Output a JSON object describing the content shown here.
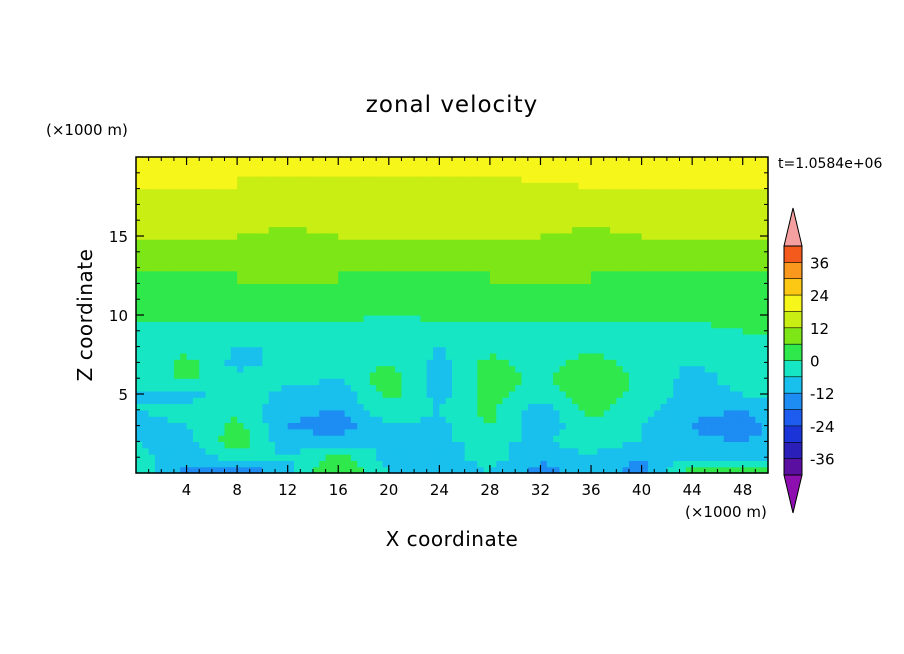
{
  "chart_data": {
    "type": "heatmap",
    "title": "zonal velocity",
    "xlabel": "X coordinate",
    "ylabel": "Z coordinate",
    "x_unit": "(×1000 m)",
    "y_unit": "(×1000 m)",
    "time_label": "t=1.0584e+06",
    "xlim": [
      0,
      50
    ],
    "ylim": [
      0,
      20
    ],
    "x_ticks": [
      4,
      8,
      12,
      16,
      20,
      24,
      28,
      32,
      36,
      40,
      44,
      48
    ],
    "y_ticks": [
      5,
      10,
      15
    ],
    "colorbar": {
      "levels": [
        -42,
        -36,
        -30,
        -24,
        -18,
        -12,
        -6,
        0,
        6,
        12,
        18,
        24,
        30,
        36,
        42
      ],
      "labels": [
        36,
        24,
        12,
        0,
        -12,
        -24,
        -36
      ],
      "colors": [
        "#5a0fa0",
        "#2a1fb8",
        "#1a34d8",
        "#1e5cf0",
        "#1d8cf3",
        "#19c0ee",
        "#17e6c4",
        "#2ee84c",
        "#7de617",
        "#c8ee14",
        "#f6f61a",
        "#fcc814",
        "#f9981c",
        "#f45a1c",
        "#e2241a",
        "#f4a0a0"
      ],
      "under_color": "#8e0fb0",
      "over_color": "#f4a0a0"
    },
    "description_grid": {
      "x": [
        0,
        4,
        8,
        12,
        16,
        20,
        24,
        28,
        32,
        36,
        40,
        44,
        48,
        50
      ],
      "z": [
        0,
        1,
        2,
        3,
        4,
        5,
        6,
        7,
        8,
        9,
        10,
        11,
        12,
        13,
        14,
        15,
        16,
        17,
        18,
        19,
        20
      ],
      "values": [
        [
          -2,
          -14,
          -20,
          -8,
          8,
          -6,
          -10,
          -6,
          -16,
          -8,
          -16,
          4,
          2,
          2
        ],
        [
          -4,
          -10,
          -4,
          -6,
          2,
          -8,
          -8,
          -4,
          -10,
          -6,
          -12,
          -6,
          -8,
          -8
        ],
        [
          -6,
          -8,
          4,
          -10,
          -8,
          -6,
          -6,
          -6,
          -6,
          -4,
          -6,
          -10,
          -12,
          -10
        ],
        [
          -8,
          -6,
          2,
          -12,
          -16,
          -6,
          -8,
          0,
          -10,
          -2,
          -6,
          -12,
          -18,
          -10
        ],
        [
          -6,
          -4,
          -2,
          -10,
          -12,
          -2,
          -6,
          2,
          -10,
          2,
          -4,
          -10,
          -12,
          -8
        ],
        [
          -6,
          -8,
          -2,
          -8,
          -10,
          2,
          -8,
          2,
          -4,
          4,
          -2,
          -8,
          -6,
          -6
        ],
        [
          -4,
          2,
          -4,
          -4,
          -6,
          4,
          -10,
          4,
          -2,
          6,
          -2,
          -8,
          -4,
          -6
        ],
        [
          -6,
          2,
          -8,
          -4,
          -2,
          0,
          -8,
          2,
          -4,
          4,
          -4,
          -6,
          -4,
          -4
        ],
        [
          -4,
          -2,
          -6,
          -6,
          -4,
          -2,
          -6,
          -2,
          -4,
          -2,
          -4,
          -4,
          -2,
          -2
        ],
        [
          -2,
          -2,
          -4,
          -2,
          -4,
          -4,
          -6,
          -4,
          -4,
          -4,
          -2,
          -2,
          0,
          0
        ],
        [
          2,
          2,
          2,
          2,
          2,
          0,
          2,
          2,
          2,
          2,
          2,
          2,
          2,
          2
        ],
        [
          4,
          4,
          4,
          6,
          4,
          4,
          2,
          4,
          4,
          4,
          4,
          4,
          4,
          4
        ],
        [
          4,
          4,
          6,
          6,
          6,
          4,
          4,
          6,
          6,
          6,
          4,
          4,
          4,
          4
        ],
        [
          6,
          6,
          6,
          6,
          6,
          6,
          6,
          6,
          6,
          6,
          6,
          6,
          6,
          6
        ],
        [
          8,
          8,
          8,
          10,
          8,
          8,
          8,
          8,
          8,
          8,
          8,
          8,
          8,
          8
        ],
        [
          12,
          12,
          12,
          10,
          12,
          12,
          12,
          12,
          12,
          10,
          12,
          12,
          12,
          12
        ],
        [
          14,
          14,
          14,
          14,
          14,
          14,
          14,
          14,
          14,
          14,
          14,
          14,
          14,
          14
        ],
        [
          16,
          16,
          16,
          16,
          16,
          16,
          16,
          16,
          16,
          16,
          16,
          16,
          16,
          16
        ],
        [
          18,
          18,
          18,
          16,
          16,
          16,
          16,
          16,
          16,
          18,
          18,
          18,
          18,
          18
        ],
        [
          20,
          18,
          18,
          18,
          18,
          18,
          18,
          18,
          20,
          20,
          20,
          20,
          20,
          20
        ],
        [
          24,
          20,
          18,
          18,
          18,
          18,
          18,
          18,
          22,
          24,
          24,
          24,
          24,
          24
        ]
      ]
    }
  }
}
